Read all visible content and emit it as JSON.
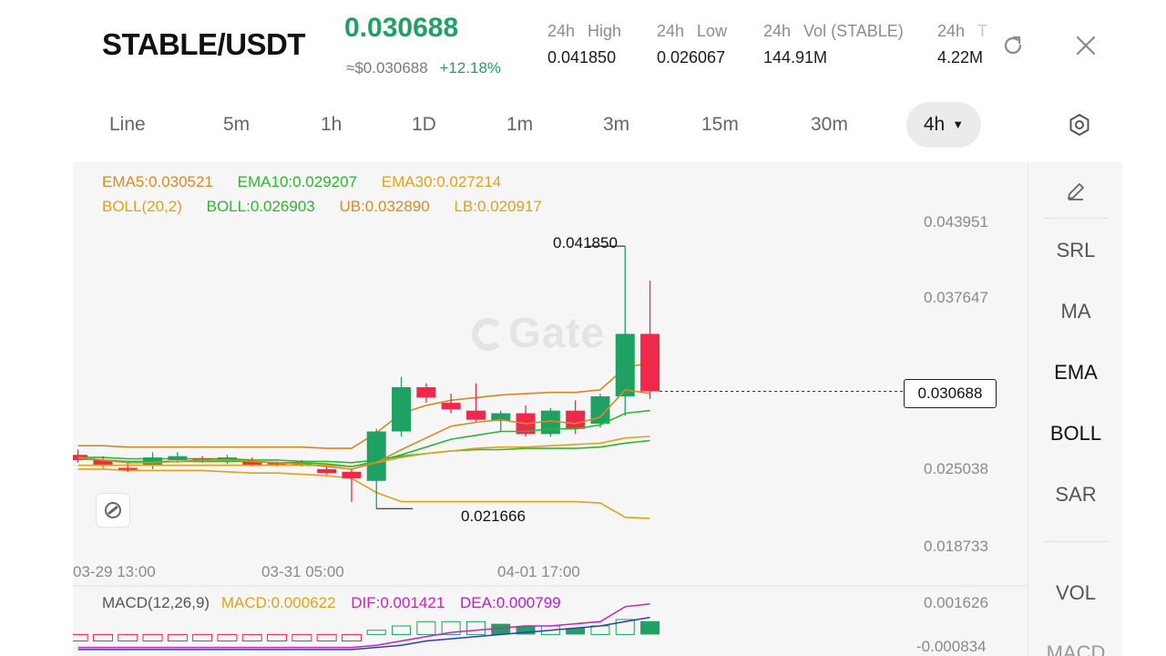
{
  "header": {
    "pair": "STABLE/USDT",
    "last_price": "0.030688",
    "fiat_price": "≈$0.030688",
    "change_pct": "+12.18%",
    "stats": [
      {
        "label_a": "24h",
        "label_b": "High",
        "value": "0.041850"
      },
      {
        "label_a": "24h",
        "label_b": "Low",
        "value": "0.026067"
      },
      {
        "label_a": "24h",
        "label_b": "Vol (STABLE)",
        "value": "144.91M"
      },
      {
        "label_a": "24h",
        "label_b": "T",
        "value": "4.22M"
      }
    ]
  },
  "intervals": [
    "Line",
    "5m",
    "1h",
    "1D",
    "1m",
    "3m",
    "15m",
    "30m",
    "4h"
  ],
  "active_interval": "4h",
  "legend": {
    "ema5": "EMA5:0.030521",
    "ema10": "EMA10:0.029207",
    "ema30": "EMA30:0.027214",
    "boll": "BOLL(20,2)",
    "boll_mid": "BOLL:0.026903",
    "ub": "UB:0.032890",
    "lb": "LB:0.020917"
  },
  "macd_legend": {
    "title": "MACD(12,26,9)",
    "macd": "MACD:0.000622",
    "dif": "DIF:0.001421",
    "dea": "DEA:0.000799"
  },
  "price_axis": [
    "0.043951",
    "0.037647",
    "0.025038",
    "0.018733"
  ],
  "macd_axis": [
    "0.001626",
    "-0.000834"
  ],
  "time_axis": [
    "03-29 13:00",
    "03-31 05:00",
    "04-01 17:00"
  ],
  "annotations": {
    "high": "0.041850",
    "low": "0.021666"
  },
  "current_price_tag": "0.030688",
  "watermark": "Gate",
  "sidebar": [
    "SRL",
    "MA",
    "EMA",
    "BOLL",
    "SAR",
    "VOL",
    "MACD"
  ],
  "colors": {
    "up": "#1ea163",
    "down": "#f0284b",
    "ema5": "#d98a20",
    "ema10": "#2fb52f",
    "ema30": "#e0a21a",
    "boll_upper": "#d9861c",
    "dif": "#d21fb2",
    "dea": "#2b3cbe"
  },
  "chart_data": {
    "type": "candlestick",
    "timeframe": "4h",
    "ohlc": [
      {
        "o": 0.0258,
        "h": 0.0262,
        "l": 0.0252,
        "c": 0.0254
      },
      {
        "o": 0.0254,
        "h": 0.0257,
        "l": 0.0248,
        "c": 0.025
      },
      {
        "o": 0.0248,
        "h": 0.0253,
        "l": 0.0245,
        "c": 0.0247
      },
      {
        "o": 0.025,
        "h": 0.026,
        "l": 0.0247,
        "c": 0.0256
      },
      {
        "o": 0.0254,
        "h": 0.026,
        "l": 0.0252,
        "c": 0.0257
      },
      {
        "o": 0.0255,
        "h": 0.0257,
        "l": 0.0252,
        "c": 0.0254
      },
      {
        "o": 0.0254,
        "h": 0.0258,
        "l": 0.0251,
        "c": 0.0256
      },
      {
        "o": 0.0253,
        "h": 0.0256,
        "l": 0.0249,
        "c": 0.025
      },
      {
        "o": 0.0252,
        "h": 0.0253,
        "l": 0.0249,
        "c": 0.0251
      },
      {
        "o": 0.0252,
        "h": 0.0254,
        "l": 0.0249,
        "c": 0.025
      },
      {
        "o": 0.0247,
        "h": 0.0249,
        "l": 0.0243,
        "c": 0.0244
      },
      {
        "o": 0.0245,
        "h": 0.0247,
        "l": 0.0222,
        "c": 0.024
      },
      {
        "o": 0.0238,
        "h": 0.0278,
        "l": 0.02167,
        "c": 0.0276
      },
      {
        "o": 0.0276,
        "h": 0.0318,
        "l": 0.0272,
        "c": 0.031
      },
      {
        "o": 0.031,
        "h": 0.0313,
        "l": 0.0298,
        "c": 0.0302
      },
      {
        "o": 0.0298,
        "h": 0.0305,
        "l": 0.029,
        "c": 0.0293
      },
      {
        "o": 0.0292,
        "h": 0.0313,
        "l": 0.0283,
        "c": 0.0285
      },
      {
        "o": 0.0284,
        "h": 0.0292,
        "l": 0.0276,
        "c": 0.029
      },
      {
        "o": 0.029,
        "h": 0.0296,
        "l": 0.0272,
        "c": 0.0274
      },
      {
        "o": 0.0274,
        "h": 0.0294,
        "l": 0.0272,
        "c": 0.0292
      },
      {
        "o": 0.0292,
        "h": 0.03,
        "l": 0.0274,
        "c": 0.0278
      },
      {
        "o": 0.0282,
        "h": 0.0305,
        "l": 0.0279,
        "c": 0.0303
      },
      {
        "o": 0.0303,
        "h": 0.04185,
        "l": 0.0288,
        "c": 0.0351
      },
      {
        "o": 0.0351,
        "h": 0.0392,
        "l": 0.0301,
        "c": 0.030688
      }
    ],
    "ema5": [
      0.0256,
      0.0254,
      0.0252,
      0.0252,
      0.0253,
      0.0254,
      0.0254,
      0.0253,
      0.0252,
      0.0251,
      0.0249,
      0.0247,
      0.0252,
      0.0262,
      0.0271,
      0.028,
      0.0283,
      0.0285,
      0.0282,
      0.0284,
      0.0282,
      0.0287,
      0.0308,
      0.030521
    ],
    "ema10": [
      0.0255,
      0.0254,
      0.0253,
      0.0253,
      0.0253,
      0.0253,
      0.0253,
      0.0253,
      0.0252,
      0.0252,
      0.0251,
      0.0249,
      0.0253,
      0.0258,
      0.0264,
      0.027,
      0.0273,
      0.0276,
      0.0276,
      0.0278,
      0.0278,
      0.0281,
      0.029,
      0.029207
    ],
    "ema30": [
      0.025,
      0.025,
      0.025,
      0.025,
      0.025,
      0.025,
      0.025,
      0.025,
      0.025,
      0.025,
      0.025,
      0.0249,
      0.0252,
      0.0256,
      0.0259,
      0.0261,
      0.0263,
      0.0264,
      0.0264,
      0.0265,
      0.0266,
      0.0267,
      0.0271,
      0.027214
    ],
    "boll_upper": [
      0.0265,
      0.0265,
      0.0264,
      0.0264,
      0.0264,
      0.0264,
      0.0264,
      0.0264,
      0.0264,
      0.0264,
      0.0263,
      0.0263,
      0.0275,
      0.029,
      0.0296,
      0.03,
      0.0302,
      0.0304,
      0.0305,
      0.0306,
      0.0306,
      0.0308,
      0.0325,
      0.03289
    ],
    "boll_mid": [
      0.0256,
      0.0256,
      0.0255,
      0.0255,
      0.0255,
      0.0255,
      0.0255,
      0.0254,
      0.0254,
      0.0253,
      0.0253,
      0.0252,
      0.0254,
      0.0257,
      0.0259,
      0.0261,
      0.0262,
      0.0262,
      0.0263,
      0.0263,
      0.0263,
      0.0264,
      0.0267,
      0.026903
    ],
    "boll_lower": [
      0.0247,
      0.0247,
      0.0246,
      0.0246,
      0.0246,
      0.0246,
      0.0245,
      0.0244,
      0.0244,
      0.0243,
      0.0242,
      0.024,
      0.0229,
      0.0222,
      0.0222,
      0.0222,
      0.0222,
      0.0222,
      0.0222,
      0.0222,
      0.0222,
      0.0221,
      0.021,
      0.020917
    ],
    "macd_hist": [
      -0.0003,
      -0.0003,
      -0.0003,
      -0.0003,
      -0.0003,
      -0.0003,
      -0.0003,
      -0.0003,
      -0.0003,
      -0.0003,
      -0.0003,
      -0.0003,
      0.0002,
      0.0004,
      0.0006,
      0.0006,
      0.0006,
      0.0005,
      0.0004,
      0.0004,
      0.0003,
      0.0004,
      0.0007,
      0.000622
    ],
    "dif": [
      -0.0006,
      -0.0006,
      -0.0006,
      -0.0006,
      -0.0006,
      -0.0006,
      -0.0006,
      -0.0006,
      -0.0006,
      -0.0006,
      -0.0006,
      -0.0006,
      -0.0005,
      -0.0003,
      -0.0001,
      0.0001,
      0.0002,
      0.0003,
      0.0004,
      0.0004,
      0.0005,
      0.0006,
      0.0013,
      0.001421
    ],
    "dea": [
      -0.0007,
      -0.0007,
      -0.0007,
      -0.0007,
      -0.0007,
      -0.0007,
      -0.0007,
      -0.0007,
      -0.0007,
      -0.0007,
      -0.0007,
      -0.0007,
      -0.0006,
      -0.0005,
      -0.0003,
      -0.0002,
      -0.0001,
      0.0,
      0.0001,
      0.0002,
      0.0003,
      0.0004,
      0.0006,
      0.000799
    ],
    "price_ylim": [
      0.0165,
      0.0455
    ],
    "macd_ylim": [
      -0.001,
      0.0018
    ]
  }
}
